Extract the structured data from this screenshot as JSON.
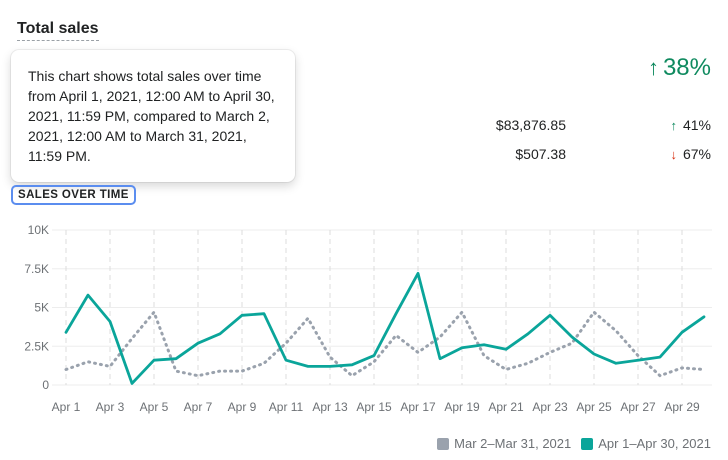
{
  "header": {
    "title": "Total sales"
  },
  "summary": {
    "change_arrow": "↑",
    "change_pct": "38%",
    "rows": [
      {
        "value": "$83,876.85",
        "arrow": "↑",
        "direction": "up",
        "change": "41%"
      },
      {
        "value": "$507.38",
        "arrow": "↓",
        "direction": "down",
        "change": "67%"
      }
    ]
  },
  "tooltip": {
    "text": "This chart shows total sales over time from April 1, 2021, 12:00 AM to April 30, 2021, 11:59 PM, compared to March 2, 2021, 12:00 AM to March 31, 2021, 11:59 PM."
  },
  "section": {
    "label": "SALES OVER TIME"
  },
  "colors": {
    "current": "#0aa59a",
    "previous": "#9aa2ad",
    "positive": "#0f8a5f",
    "negative": "#d82c0d"
  },
  "chart_data": {
    "type": "line",
    "title": "",
    "xlabel": "",
    "ylabel": "",
    "ylim": [
      0,
      10000
    ],
    "y_ticks": [
      0,
      2500,
      5000,
      7500,
      10000
    ],
    "y_tick_labels": [
      "0",
      "2.5K",
      "5K",
      "7.5K",
      "10K"
    ],
    "x_tick_labels": [
      "Apr 1",
      "Apr 3",
      "Apr 5",
      "Apr 7",
      "Apr 9",
      "Apr 11",
      "Apr 13",
      "Apr 15",
      "Apr 17",
      "Apr 19",
      "Apr 21",
      "Apr 23",
      "Apr 25",
      "Apr 27",
      "Apr 29"
    ],
    "grid": true,
    "legend_position": "bottom-right",
    "series": [
      {
        "name": "Mar 2–Mar 31, 2021",
        "style": "dotted",
        "values": [
          1000,
          1500,
          1200,
          3000,
          4700,
          900,
          600,
          900,
          900,
          1400,
          2700,
          4300,
          1800,
          600,
          1500,
          3200,
          2100,
          3100,
          4700,
          1900,
          1000,
          1400,
          2100,
          2700,
          4700,
          3500,
          1900,
          600,
          1100,
          1000
        ]
      },
      {
        "name": "Apr 1–Apr 30, 2021",
        "style": "solid",
        "values": [
          3400,
          5800,
          4100,
          100,
          1600,
          1700,
          2700,
          3300,
          4500,
          4600,
          1600,
          1200,
          1200,
          1300,
          1900,
          4600,
          7200,
          1700,
          2400,
          2600,
          2300,
          3300,
          4500,
          3100,
          2000,
          1400,
          1600,
          1800,
          3400,
          4400
        ]
      }
    ]
  }
}
